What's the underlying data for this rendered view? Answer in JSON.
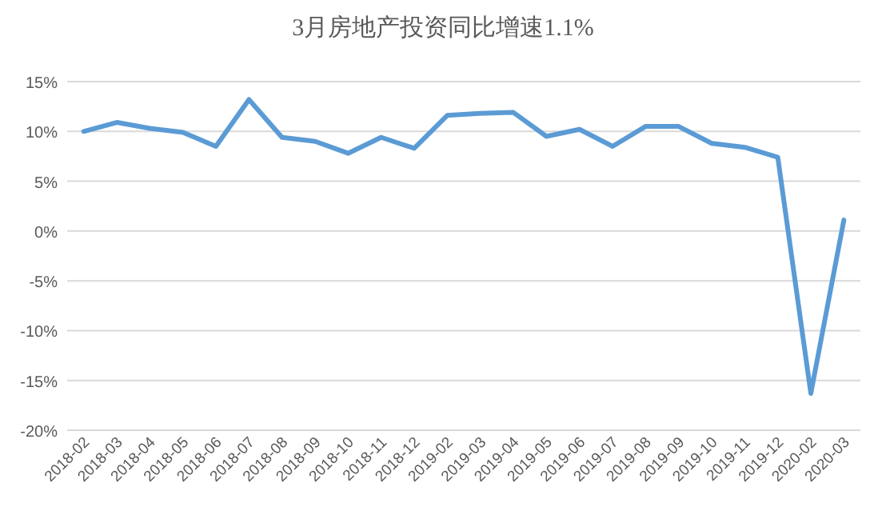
{
  "chart_data": {
    "type": "line",
    "title": "3月房地产投资同比增速1.1%",
    "categories": [
      "2018-02",
      "2018-03",
      "2018-04",
      "2018-05",
      "2018-06",
      "2018-07",
      "2018-08",
      "2018-09",
      "2018-10",
      "2018-11",
      "2018-12",
      "2019-02",
      "2019-03",
      "2019-04",
      "2019-05",
      "2019-06",
      "2019-07",
      "2019-08",
      "2019-09",
      "2019-10",
      "2019-11",
      "2019-12",
      "2020-02",
      "2020-03"
    ],
    "series": [
      {
        "color": "#5b9bd5",
        "values": [
          10.0,
          10.9,
          10.3,
          9.9,
          8.5,
          13.2,
          9.4,
          9.0,
          7.8,
          9.4,
          8.3,
          11.6,
          11.8,
          11.9,
          9.5,
          10.2,
          8.5,
          10.5,
          10.5,
          8.8,
          8.4,
          7.4,
          -16.3,
          1.1
        ]
      }
    ],
    "ylim": [
      -20,
      15
    ],
    "yticks": [
      {
        "value": -20,
        "label": "-20%"
      },
      {
        "value": -15,
        "label": "-15%"
      },
      {
        "value": -10,
        "label": "-10%"
      },
      {
        "value": -5,
        "label": "-5%"
      },
      {
        "value": 0,
        "label": "0%"
      },
      {
        "value": 5,
        "label": "5%"
      },
      {
        "value": 10,
        "label": "10%"
      },
      {
        "value": 15,
        "label": "15%"
      }
    ],
    "grid": "y",
    "marker": "none",
    "line_style": "solid"
  }
}
